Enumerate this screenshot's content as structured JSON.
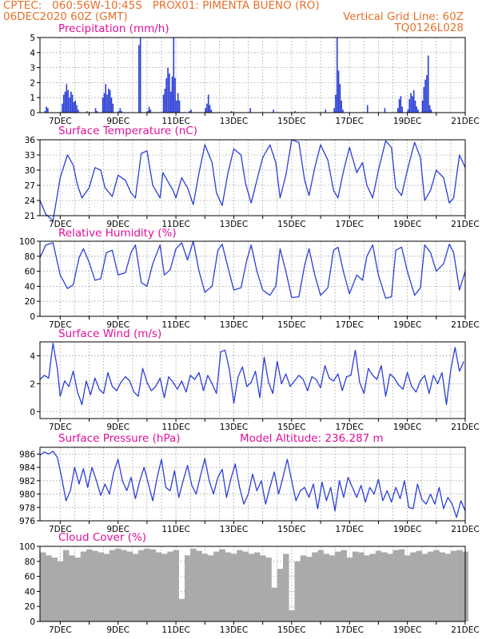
{
  "header": {
    "line1_left": "CPTEC:   060:56W-10:45S   PROX01: PIMENTA BUENO (RO)",
    "line2_left": "06DEC2020 60Z (GMT)",
    "line2_right": "Vertical Grid Line: 60Z",
    "line3_right": "TQ0126L028"
  },
  "colors": {
    "header": "#e8702a",
    "title": "#e0109a",
    "series": "#2b3fd6",
    "cloud": "#aaaaaa",
    "grid": "#9a9a9a"
  },
  "chart_data": [
    {
      "type": "bar",
      "title": "Precipitation (mm/h)",
      "ylim": [
        0,
        5
      ],
      "yticks": [
        "0",
        "1",
        "2",
        "3",
        "4",
        "5"
      ],
      "xlim": [
        6.3,
        21
      ],
      "xticks": [
        "7DEC",
        "9DEC",
        "11DEC",
        "13DEC",
        "15DEC",
        "17DEC",
        "19DEC",
        "21DEC"
      ],
      "grid": true,
      "x": [
        6.45,
        6.5,
        6.55,
        7.05,
        7.1,
        7.15,
        7.2,
        7.25,
        7.3,
        7.35,
        7.4,
        7.45,
        7.5,
        7.55,
        7.6,
        7.9,
        8.2,
        8.25,
        8.45,
        8.5,
        8.55,
        8.6,
        8.65,
        8.7,
        8.75,
        8.8,
        9.0,
        9.05,
        9.1,
        9.7,
        9.75,
        10.0,
        10.05,
        10.1,
        10.55,
        10.6,
        10.65,
        10.7,
        10.75,
        10.8,
        10.85,
        10.9,
        10.95,
        11.0,
        11.05,
        11.1,
        11.45,
        11.5,
        12.0,
        12.05,
        12.1,
        12.15,
        12.2,
        12.9,
        13.55,
        14.35,
        15.1,
        16.15,
        16.45,
        16.5,
        16.55,
        16.6,
        16.65,
        16.7,
        16.75,
        17.6,
        18.2,
        18.65,
        18.7,
        18.75,
        18.8,
        19.0,
        19.05,
        19.1,
        19.15,
        19.2,
        19.25,
        19.3,
        19.35,
        19.5,
        19.55,
        19.6,
        19.65,
        19.7,
        19.75,
        19.8
      ],
      "values": [
        0.1,
        0.4,
        0.3,
        0.6,
        1.2,
        1.4,
        1.9,
        1.5,
        1.0,
        1.4,
        1.2,
        0.7,
        0.8,
        0.5,
        0.2,
        0.1,
        0.3,
        0.1,
        1.0,
        1.3,
        1.9,
        1.2,
        1.6,
        1.5,
        1.0,
        0.6,
        0.1,
        0.3,
        0.1,
        4.5,
        5.0,
        0.1,
        0.4,
        0.2,
        1.2,
        1.6,
        2.3,
        3.0,
        2.6,
        1.4,
        2.4,
        5.0,
        2.3,
        0.8,
        1.3,
        0.8,
        0.1,
        0.2,
        0.3,
        0.6,
        1.2,
        0.5,
        0.2,
        0.1,
        0.3,
        0.2,
        0.1,
        0.2,
        0.3,
        1.2,
        5.0,
        2.8,
        1.9,
        0.8,
        0.2,
        0.5,
        0.3,
        0.3,
        0.9,
        1.1,
        0.4,
        0.2,
        0.9,
        1.3,
        1.1,
        1.5,
        0.8,
        0.4,
        0.2,
        0.8,
        1.7,
        2.2,
        2.5,
        3.8,
        0.5,
        0.2
      ]
    },
    {
      "type": "line",
      "title": "Surface Temperature (nC)",
      "ylim": [
        21,
        36
      ],
      "yticks": [
        "21",
        "24",
        "27",
        "30",
        "33",
        "36"
      ],
      "xlim": [
        6.3,
        21
      ],
      "xticks": [
        "7DEC",
        "9DEC",
        "11DEC",
        "13DEC",
        "15DEC",
        "17DEC",
        "19DEC",
        "21DEC"
      ],
      "grid": true,
      "x": [
        6.3,
        6.5,
        6.75,
        7.0,
        7.25,
        7.45,
        7.6,
        7.75,
        8.0,
        8.2,
        8.4,
        8.55,
        8.8,
        9.0,
        9.25,
        9.45,
        9.6,
        9.8,
        10.0,
        10.2,
        10.45,
        10.55,
        10.7,
        10.9,
        11.0,
        11.2,
        11.4,
        11.6,
        11.8,
        12.0,
        12.25,
        12.4,
        12.6,
        12.8,
        13.0,
        13.25,
        13.4,
        13.6,
        13.8,
        14.0,
        14.25,
        14.45,
        14.6,
        14.8,
        15.0,
        15.25,
        15.45,
        15.6,
        15.8,
        16.0,
        16.25,
        16.45,
        16.6,
        16.8,
        17.0,
        17.25,
        17.45,
        17.6,
        17.8,
        18.0,
        18.25,
        18.45,
        18.6,
        18.8,
        19.0,
        19.25,
        19.45,
        19.6,
        19.8,
        20.0,
        20.25,
        20.45,
        20.6,
        20.8,
        21.0
      ],
      "values": [
        24.0,
        21.3,
        20.0,
        28.5,
        33.0,
        31.0,
        27.0,
        24.5,
        26.5,
        30.5,
        30.0,
        26.5,
        24.8,
        29.0,
        28.0,
        25.5,
        24.5,
        33.3,
        33.8,
        27.0,
        24.5,
        29.5,
        28.0,
        26.0,
        24.5,
        28.5,
        26.5,
        23.2,
        29.5,
        35.0,
        31.5,
        25.5,
        23.0,
        29.5,
        34.2,
        33.0,
        27.5,
        23.5,
        28.0,
        32.5,
        35.0,
        31.5,
        24.5,
        29.0,
        36.0,
        35.5,
        28.0,
        25.0,
        30.5,
        35.0,
        32.0,
        26.0,
        24.5,
        30.0,
        34.5,
        29.5,
        31.5,
        27.0,
        24.5,
        30.0,
        35.8,
        34.5,
        26.5,
        25.0,
        30.0,
        35.5,
        32.5,
        24.0,
        26.0,
        30.0,
        28.5,
        23.5,
        24.5,
        33.0,
        30.5
      ]
    },
    {
      "type": "line",
      "title": "Relative Humidity (%)",
      "ylim": [
        0,
        100
      ],
      "yticks": [
        "0",
        "20",
        "40",
        "60",
        "80",
        "100"
      ],
      "xlim": [
        6.3,
        21
      ],
      "xticks": [
        "7DEC",
        "9DEC",
        "11DEC",
        "13DEC",
        "15DEC",
        "17DEC",
        "19DEC",
        "21DEC"
      ],
      "grid": true,
      "x": [
        6.3,
        6.5,
        6.75,
        7.0,
        7.25,
        7.45,
        7.65,
        7.8,
        8.0,
        8.2,
        8.4,
        8.6,
        8.8,
        9.0,
        9.25,
        9.45,
        9.6,
        9.8,
        10.0,
        10.2,
        10.45,
        10.6,
        10.8,
        11.0,
        11.2,
        11.4,
        11.6,
        11.8,
        12.0,
        12.25,
        12.45,
        12.6,
        12.8,
        13.0,
        13.25,
        13.45,
        13.6,
        13.8,
        14.0,
        14.25,
        14.45,
        14.6,
        14.8,
        15.0,
        15.25,
        15.45,
        15.6,
        15.8,
        16.0,
        16.25,
        16.45,
        16.6,
        16.8,
        17.0,
        17.25,
        17.45,
        17.6,
        17.8,
        18.0,
        18.25,
        18.45,
        18.6,
        18.8,
        19.0,
        19.25,
        19.45,
        19.6,
        19.8,
        20.0,
        20.25,
        20.45,
        20.6,
        20.8,
        21.0
      ],
      "values": [
        78.0,
        95.0,
        98.0,
        55.0,
        37.0,
        42.0,
        78.0,
        90.0,
        72.0,
        48.0,
        50.0,
        85.0,
        88.0,
        55.0,
        58.0,
        85.0,
        95.0,
        45.0,
        40.0,
        70.0,
        95.0,
        55.0,
        62.0,
        90.0,
        98.0,
        75.0,
        100.0,
        60.0,
        32.0,
        40.0,
        88.0,
        96.0,
        65.0,
        35.0,
        38.0,
        75.0,
        95.0,
        60.0,
        35.0,
        28.0,
        40.0,
        90.0,
        60.0,
        25.0,
        26.0,
        68.0,
        90.0,
        55.0,
        28.0,
        38.0,
        88.0,
        92.0,
        58.0,
        30.0,
        55.0,
        48.0,
        80.0,
        95.0,
        55.0,
        24.0,
        26.0,
        88.0,
        92.0,
        60.0,
        28.0,
        38.0,
        95.0,
        85.0,
        60.0,
        70.0,
        96.0,
        85.0,
        35.0,
        60.0
      ]
    },
    {
      "type": "line",
      "title": "Surface Wind (m/s)",
      "ylim": [
        -0.5,
        5
      ],
      "yticks": [
        "0",
        "2",
        "4"
      ],
      "xlim": [
        6.3,
        21
      ],
      "xticks": [
        "7DEC",
        "9DEC",
        "11DEC",
        "13DEC",
        "15DEC",
        "17DEC",
        "19DEC",
        "21DEC"
      ],
      "grid": true,
      "x": [
        6.3,
        6.45,
        6.6,
        6.75,
        6.9,
        7.0,
        7.15,
        7.3,
        7.45,
        7.6,
        7.75,
        7.9,
        8.05,
        8.2,
        8.35,
        8.5,
        8.65,
        8.8,
        8.95,
        9.1,
        9.25,
        9.4,
        9.55,
        9.7,
        9.85,
        10.0,
        10.15,
        10.3,
        10.45,
        10.6,
        10.75,
        10.9,
        11.05,
        11.2,
        11.35,
        11.5,
        11.65,
        11.8,
        11.95,
        12.1,
        12.25,
        12.4,
        12.55,
        12.7,
        12.85,
        13.0,
        13.15,
        13.3,
        13.45,
        13.6,
        13.75,
        13.9,
        14.05,
        14.2,
        14.35,
        14.5,
        14.65,
        14.8,
        14.95,
        15.1,
        15.25,
        15.4,
        15.55,
        15.7,
        15.85,
        16.0,
        16.15,
        16.3,
        16.45,
        16.6,
        16.75,
        16.9,
        17.05,
        17.2,
        17.35,
        17.5,
        17.65,
        17.8,
        17.95,
        18.1,
        18.25,
        18.4,
        18.55,
        18.7,
        18.85,
        19.0,
        19.15,
        19.3,
        19.45,
        19.6,
        19.75,
        19.9,
        20.05,
        20.2,
        20.35,
        20.5,
        20.65,
        20.8,
        20.95
      ],
      "values": [
        2.3,
        2.6,
        2.4,
        4.9,
        3.1,
        1.1,
        2.2,
        1.8,
        2.9,
        1.4,
        0.5,
        2.2,
        1.2,
        2.4,
        1.6,
        1.3,
        2.8,
        1.8,
        1.5,
        2.1,
        2.5,
        2.2,
        1.4,
        1.1,
        3.1,
        2.1,
        1.5,
        1.8,
        2.4,
        1.0,
        2.5,
        2.1,
        1.6,
        2.2,
        1.4,
        2.6,
        2.3,
        2.8,
        1.5,
        2.6,
        2.0,
        1.3,
        4.3,
        4.4,
        3.0,
        0.6,
        2.5,
        3.2,
        1.8,
        2.1,
        2.9,
        1.0,
        3.9,
        2.1,
        1.3,
        3.6,
        2.0,
        2.7,
        1.8,
        2.2,
        2.6,
        2.3,
        1.5,
        2.5,
        2.3,
        1.7,
        3.3,
        2.4,
        2.2,
        2.7,
        1.5,
        2.5,
        2.6,
        4.4,
        2.1,
        1.3,
        3.1,
        2.6,
        2.3,
        3.3,
        1.1,
        2.7,
        2.4,
        1.9,
        1.6,
        2.8,
        1.8,
        1.4,
        2.2,
        2.6,
        1.3,
        2.6,
        2.0,
        2.8,
        0.5,
        3.0,
        4.6,
        2.9,
        3.6
      ]
    },
    {
      "type": "line",
      "title": "Surface Pressure (hPa)",
      "annotation": "Model Altitude: 236.287 m",
      "ylim": [
        976,
        987
      ],
      "yticks": [
        "976",
        "978",
        "980",
        "982",
        "984",
        "986"
      ],
      "xlim": [
        6.3,
        21
      ],
      "xticks": [
        "7DEC",
        "9DEC",
        "11DEC",
        "13DEC",
        "15DEC",
        "17DEC",
        "19DEC",
        "21DEC"
      ],
      "grid": true,
      "x": [
        6.3,
        6.45,
        6.6,
        6.75,
        6.9,
        7.05,
        7.2,
        7.35,
        7.5,
        7.65,
        7.8,
        7.95,
        8.1,
        8.25,
        8.4,
        8.55,
        8.7,
        8.85,
        9.0,
        9.15,
        9.3,
        9.45,
        9.6,
        9.75,
        9.9,
        10.05,
        10.2,
        10.35,
        10.5,
        10.65,
        10.8,
        10.95,
        11.1,
        11.25,
        11.4,
        11.55,
        11.7,
        11.85,
        12.0,
        12.15,
        12.3,
        12.45,
        12.6,
        12.75,
        12.9,
        13.05,
        13.2,
        13.35,
        13.5,
        13.65,
        13.8,
        13.95,
        14.1,
        14.25,
        14.4,
        14.55,
        14.7,
        14.85,
        15.0,
        15.15,
        15.3,
        15.45,
        15.6,
        15.75,
        15.9,
        16.05,
        16.2,
        16.35,
        16.5,
        16.65,
        16.8,
        16.95,
        17.1,
        17.25,
        17.4,
        17.55,
        17.7,
        17.85,
        18.0,
        18.15,
        18.3,
        18.45,
        18.6,
        18.75,
        18.9,
        19.05,
        19.2,
        19.35,
        19.5,
        19.65,
        19.8,
        19.95,
        20.1,
        20.25,
        20.4,
        20.55,
        20.7,
        20.85,
        21.0
      ],
      "values": [
        985.8,
        986.3,
        986.0,
        986.4,
        985.5,
        982.5,
        979.0,
        980.5,
        984.0,
        981.5,
        983.8,
        981.0,
        984.0,
        982.0,
        979.8,
        981.5,
        980.0,
        983.3,
        985.2,
        982.0,
        980.5,
        982.5,
        979.3,
        982.0,
        984.0,
        981.5,
        979.0,
        982.5,
        985.2,
        981.0,
        980.5,
        983.5,
        979.5,
        982.0,
        984.3,
        981.3,
        980.0,
        982.8,
        985.3,
        982.0,
        980.0,
        982.5,
        983.7,
        979.5,
        982.3,
        984.5,
        981.0,
        978.5,
        980.0,
        983.0,
        980.5,
        982.0,
        978.5,
        981.0,
        983.3,
        980.0,
        982.5,
        985.2,
        982.0,
        979.0,
        980.5,
        981.0,
        979.5,
        981.5,
        977.8,
        981.8,
        979.0,
        981.0,
        977.5,
        982.0,
        979.5,
        982.5,
        981.0,
        979.5,
        981.3,
        978.8,
        981.0,
        980.0,
        982.2,
        979.0,
        980.5,
        978.8,
        981.0,
        979.3,
        982.0,
        978.0,
        977.8,
        981.5,
        979.2,
        978.5,
        980.0,
        978.5,
        981.0,
        977.8,
        979.5,
        978.5,
        976.5,
        979.0,
        977.5
      ]
    },
    {
      "type": "bar",
      "title": "Cloud Cover (%)",
      "ylim": [
        0,
        100
      ],
      "yticks": [
        "0",
        "20",
        "40",
        "60",
        "80",
        "100"
      ],
      "xlim": [
        6.3,
        21
      ],
      "xticks": [
        "7DEC",
        "9DEC",
        "11DEC",
        "13DEC",
        "15DEC",
        "17DEC",
        "19DEC",
        "21DEC"
      ],
      "grid": true,
      "x": [
        6.3,
        6.5,
        6.7,
        6.9,
        7.1,
        7.3,
        7.5,
        7.7,
        7.9,
        8.1,
        8.3,
        8.5,
        8.7,
        8.9,
        9.1,
        9.3,
        9.5,
        9.7,
        9.9,
        10.1,
        10.3,
        10.5,
        10.7,
        10.9,
        11.1,
        11.3,
        11.5,
        11.7,
        11.9,
        12.1,
        12.3,
        12.5,
        12.7,
        12.9,
        13.1,
        13.3,
        13.5,
        13.7,
        13.9,
        14.1,
        14.3,
        14.5,
        14.7,
        14.9,
        15.1,
        15.3,
        15.5,
        15.7,
        15.9,
        16.1,
        16.3,
        16.5,
        16.7,
        16.9,
        17.1,
        17.3,
        17.5,
        17.7,
        17.9,
        18.1,
        18.3,
        18.5,
        18.7,
        18.9,
        19.1,
        19.3,
        19.5,
        19.7,
        19.9,
        20.1,
        20.3,
        20.5,
        20.7,
        20.9
      ],
      "values": [
        92,
        88,
        85,
        80,
        95,
        88,
        85,
        93,
        96,
        94,
        92,
        90,
        95,
        97,
        95,
        93,
        90,
        95,
        97,
        96,
        92,
        90,
        93,
        95,
        30,
        88,
        97,
        94,
        90,
        88,
        93,
        96,
        92,
        90,
        95,
        93,
        90,
        92,
        88,
        85,
        45,
        70,
        90,
        15,
        80,
        88,
        86,
        92,
        95,
        90,
        88,
        93,
        95,
        85,
        93,
        92,
        88,
        90,
        94,
        92,
        90,
        95,
        96,
        88,
        92,
        94,
        90,
        93,
        95,
        92,
        90,
        94,
        95,
        93
      ]
    }
  ]
}
